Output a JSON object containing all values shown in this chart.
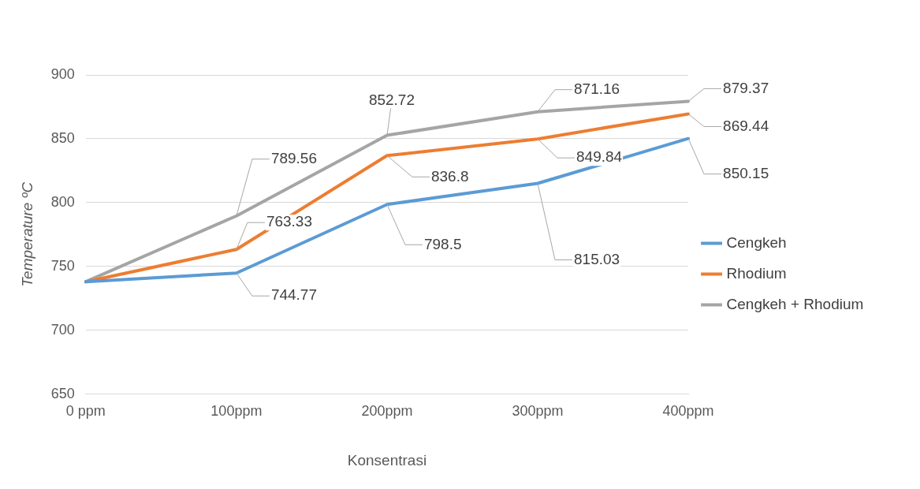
{
  "chart_data": {
    "type": "line",
    "xlabel": "Konsentrasi",
    "ylabel": "Temperature ºC",
    "categories": [
      "0 ppm",
      "100ppm",
      "200ppm",
      "300ppm",
      "400ppm"
    ],
    "series": [
      {
        "name": "Cengkeh",
        "color": "#5b9bd5",
        "values": [
          738,
          744.77,
          798.5,
          815.03,
          850.15
        ],
        "value_labels": [
          null,
          "744.77",
          "798.5",
          "815.03",
          "850.15"
        ]
      },
      {
        "name": "Rhodium",
        "color": "#ed7d31",
        "values": [
          738,
          763.33,
          836.8,
          849.84,
          869.44
        ],
        "value_labels": [
          null,
          "763.33",
          "836.8",
          "849.84",
          "869.44"
        ]
      },
      {
        "name": "Cengkeh + Rhodium",
        "color": "#a5a5a5",
        "values": [
          738,
          789.56,
          852.72,
          871.16,
          879.37
        ],
        "value_labels": [
          null,
          "789.56",
          "852.72",
          "871.16",
          "879.37"
        ]
      }
    ],
    "ylim": [
      650,
      900
    ],
    "yticks": [
      650,
      700,
      750,
      800,
      850,
      900
    ],
    "grid": "y",
    "legend": "right",
    "marker": "none",
    "line_style": "solid"
  }
}
